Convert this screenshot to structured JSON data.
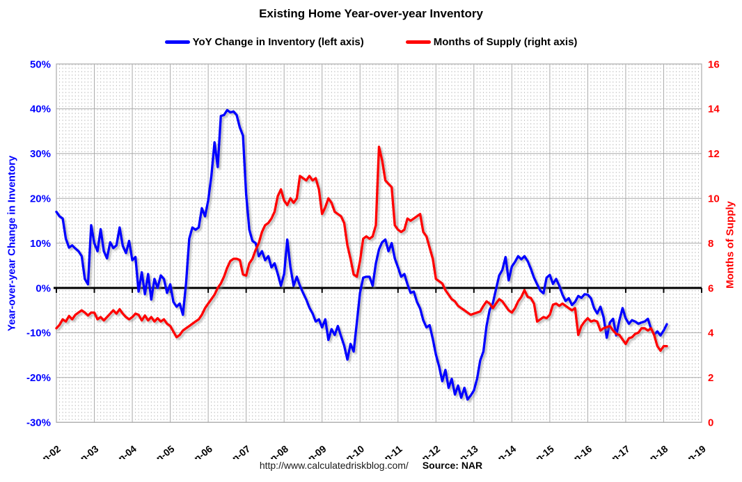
{
  "title": "Existing Home Year-over-year Inventory",
  "legend": [
    {
      "label": "YoY Change in Inventory (left axis)",
      "color": "#0000ff"
    },
    {
      "label": "Months of Supply (right axis)",
      "color": "#ff0000"
    }
  ],
  "footer": {
    "url": "http://www.calculatedriskblog.com/",
    "source": "Source: NAR"
  },
  "colors": {
    "blue_series": "#0000ff",
    "red_series": "#ff0000",
    "grid_major": "#a9a9a9",
    "grid_minor": "#c9c9c9",
    "zero_line": "#000000",
    "text": "#000000"
  },
  "left_axis": {
    "title": "Year-over-year Change in Inventory",
    "color": "#0000ff",
    "tick_labels": [
      "50%",
      "40%",
      "30%",
      "20%",
      "10%",
      "0%",
      "-10%",
      "-20%",
      "-30%"
    ],
    "tick_values": [
      50,
      40,
      30,
      20,
      10,
      0,
      -10,
      -20,
      -30
    ]
  },
  "right_axis": {
    "title": "Months of Supply",
    "color": "#ff0000",
    "tick_labels": [
      "16",
      "14",
      "12",
      "10",
      "8",
      "6",
      "4",
      "2",
      "0"
    ],
    "tick_values": [
      16,
      14,
      12,
      10,
      8,
      6,
      4,
      2,
      0
    ]
  },
  "x_axis": {
    "tick_labels": [
      "Jan-02",
      "Jan-03",
      "Jan-04",
      "Jan-05",
      "Jan-06",
      "Jan-07",
      "Jan-08",
      "Jan-09",
      "Jan-10",
      "Jan-11",
      "Jan-12",
      "Jan-13",
      "Jan-14",
      "Jan-15",
      "Jan-16",
      "Jan-17",
      "Jan-18",
      "Jan-19"
    ],
    "months_span": 204
  },
  "chart_data": {
    "type": "line",
    "title": "Existing Home Year-over-year Inventory",
    "frequency": "monthly",
    "x_start": "2002-01",
    "x_end": "2018-02",
    "left_ylim": [
      -30,
      50
    ],
    "right_ylim": [
      0,
      16
    ],
    "grid": true,
    "zero_line_at": {
      "left_percent": 0,
      "right_months": 6
    },
    "series": [
      {
        "name": "YoY Change in Inventory",
        "axis": "left",
        "unit": "percent",
        "color": "#0000ff",
        "values": [
          17,
          16,
          15.5,
          11,
          9,
          9.5,
          8.8,
          8.2,
          7.1,
          2.0,
          0.8,
          14,
          10,
          8.2,
          13.1,
          8.2,
          6.6,
          10.2,
          8.9,
          9.5,
          13.5,
          9.4,
          7.8,
          10.5,
          6.2,
          6.9,
          -0.8,
          3.5,
          -1.4,
          3.1,
          -2.6,
          2.0,
          0,
          2.8,
          2.0,
          -1.1,
          0.8,
          -3.1,
          -4.2,
          -3.5,
          -6,
          1,
          11,
          13.5,
          13,
          13.5,
          17.8,
          16,
          19.5,
          25,
          32.5,
          27,
          38.4,
          38.6,
          39.7,
          39.2,
          39.4,
          38.6,
          35.8,
          34,
          21,
          13,
          10.5,
          10,
          7.1,
          8.2,
          6.2,
          7.1,
          4.6,
          5.5,
          3.1,
          0.5,
          3.1,
          10.8,
          4.6,
          0.5,
          2.5,
          0.5,
          -1.1,
          -2.6,
          -4.4,
          -5.7,
          -7.5,
          -7.0,
          -8.8,
          -7.0,
          -11.6,
          -9.2,
          -10.5,
          -8.5,
          -10.8,
          -12.9,
          -16.0,
          -12.5,
          -14.2,
          -7.7,
          -1.1,
          2.3,
          2.5,
          2.5,
          0.5,
          5.5,
          8.6,
          10.2,
          10.8,
          8.2,
          10,
          6.6,
          4.6,
          2.5,
          3.1,
          0.8,
          -1.1,
          -0.8,
          -3.1,
          -4.6,
          -7.2,
          -8.8,
          -8.3,
          -11.4,
          -14.9,
          -17.5,
          -20.8,
          -18.3,
          -22.3,
          -20.3,
          -23.8,
          -21.8,
          -24.5,
          -22.3,
          -24.9,
          -24,
          -22.9,
          -20.3,
          -16.2,
          -14.2,
          -8.5,
          -4.9,
          -3.4,
          -0.3,
          2.8,
          4,
          6.9,
          1.7,
          4.8,
          5.8,
          7.1,
          6.4,
          7.1,
          6,
          4.3,
          2.3,
          0.8,
          -0.6,
          -1.2,
          2.3,
          2.9,
          0.9,
          2.0,
          0.5,
          -1.5,
          -2.9,
          -2.3,
          -3.8,
          -3.1,
          -1.8,
          -2.2,
          -1.4,
          -1.5,
          -2.3,
          -4.5,
          -5.7,
          -4.2,
          -6.5,
          -11.1,
          -7.7,
          -6.9,
          -10.6,
          -7.2,
          -4.5,
          -6.8,
          -8.0,
          -7.2,
          -7.5,
          -8.0,
          -7.7,
          -7.5,
          -6.9,
          -9.1,
          -10.4,
          -9.7,
          -10.6,
          -9.5,
          -8.1
        ]
      },
      {
        "name": "Months of Supply",
        "axis": "right",
        "unit": "months",
        "color": "#ff0000",
        "values": [
          4.2,
          4.35,
          4.6,
          4.5,
          4.75,
          4.6,
          4.8,
          4.9,
          5.0,
          4.9,
          4.77,
          4.9,
          4.9,
          4.6,
          4.7,
          4.55,
          4.7,
          4.85,
          5.0,
          4.85,
          5.05,
          4.85,
          4.7,
          4.6,
          4.7,
          4.85,
          4.8,
          4.55,
          4.77,
          4.55,
          4.7,
          4.5,
          4.65,
          4.5,
          4.6,
          4.4,
          4.3,
          4.05,
          3.8,
          3.9,
          4.1,
          4.2,
          4.3,
          4.4,
          4.5,
          4.6,
          4.8,
          5.1,
          5.3,
          5.5,
          5.7,
          6.0,
          6.2,
          6.5,
          6.9,
          7.2,
          7.3,
          7.3,
          7.25,
          6.6,
          6.55,
          7.1,
          7.3,
          7.7,
          8.0,
          8.5,
          8.8,
          8.9,
          9.1,
          9.4,
          10.1,
          10.4,
          9.9,
          9.7,
          10.0,
          9.8,
          10.0,
          11.0,
          10.9,
          10.8,
          11.0,
          10.8,
          10.9,
          10.4,
          9.3,
          9.6,
          10.0,
          9.8,
          9.4,
          9.3,
          9.2,
          8.9,
          7.9,
          7.3,
          6.6,
          6.5,
          7.2,
          8.2,
          8.3,
          8.2,
          8.3,
          8.8,
          12.3,
          11.7,
          10.8,
          10.65,
          10.5,
          8.8,
          8.6,
          8.5,
          8.6,
          9.1,
          9.0,
          9.1,
          9.2,
          9.3,
          8.5,
          8.3,
          7.8,
          7.3,
          6.4,
          6.3,
          6.2,
          5.9,
          5.7,
          5.5,
          5.4,
          5.2,
          5.1,
          5.0,
          4.9,
          4.8,
          4.85,
          4.9,
          4.95,
          5.2,
          5.4,
          5.3,
          5.1,
          5.3,
          5.5,
          5.4,
          5.2,
          5.0,
          4.9,
          5.1,
          5.4,
          5.6,
          5.9,
          5.6,
          5.55,
          5.3,
          4.5,
          4.6,
          4.7,
          4.65,
          4.8,
          5.25,
          5.3,
          5.2,
          5.3,
          5.2,
          5.1,
          5.0,
          5.1,
          3.9,
          4.3,
          4.5,
          4.65,
          4.5,
          4.55,
          4.5,
          4.1,
          4.2,
          4.25,
          4.3,
          4.1,
          3.95,
          3.9,
          3.7,
          3.5,
          3.75,
          3.8,
          3.95,
          4.0,
          4.2,
          4.2,
          4.1,
          4.2,
          3.9,
          3.4,
          3.2,
          3.4,
          3.4
        ]
      }
    ]
  }
}
